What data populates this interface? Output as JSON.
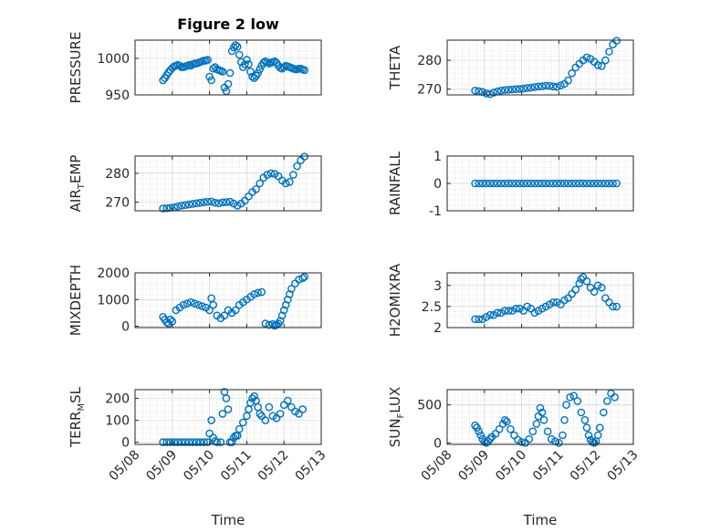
{
  "figure": {
    "title": "Figure 2 low",
    "xlabel": "Time",
    "x_ticks": [
      "05/08",
      "05/09",
      "05/10",
      "05/11",
      "05/12",
      "05/13"
    ],
    "marker_color": "#0072BD"
  },
  "chart_data": [
    {
      "type": "scatter",
      "ylabel": "PRESSURE",
      "ylim": [
        950,
        1025
      ],
      "yticks": [
        950,
        1000
      ],
      "xlim": [
        0,
        5
      ],
      "grid": true,
      "title": "Figure 2 low",
      "x": [
        0.75,
        0.8,
        0.85,
        0.9,
        0.95,
        1.0,
        1.05,
        1.1,
        1.15,
        1.2,
        1.25,
        1.3,
        1.35,
        1.4,
        1.45,
        1.5,
        1.55,
        1.6,
        1.65,
        1.7,
        1.75,
        1.8,
        1.85,
        1.9,
        1.95,
        2.0,
        2.05,
        2.1,
        2.15,
        2.2,
        2.25,
        2.3,
        2.35,
        2.4,
        2.45,
        2.5,
        2.55,
        2.6,
        2.65,
        2.7,
        2.75,
        2.8,
        2.85,
        2.9,
        2.95,
        3.0,
        3.05,
        3.1,
        3.15,
        3.2,
        3.25,
        3.3,
        3.35,
        3.4,
        3.45,
        3.5,
        3.55,
        3.6,
        3.65,
        3.7,
        3.75,
        3.8,
        3.85,
        3.9,
        3.95,
        4.0,
        4.05,
        4.1,
        4.15,
        4.2,
        4.25,
        4.3,
        4.35,
        4.4,
        4.45,
        4.5,
        4.55
      ],
      "y": [
        970,
        973,
        977,
        981,
        984,
        987,
        989,
        990,
        991,
        990,
        988,
        988,
        989,
        990,
        991,
        990,
        992,
        993,
        993,
        994,
        995,
        996,
        997,
        997,
        998,
        975,
        970,
        986,
        988,
        985,
        984,
        983,
        982,
        960,
        955,
        965,
        980,
        1010,
        1015,
        1018,
        1016,
        1005,
        995,
        988,
        992,
        998,
        992,
        982,
        975,
        973,
        976,
        980,
        985,
        990,
        994,
        996,
        995,
        993,
        994,
        995,
        996,
        994,
        990,
        987,
        986,
        988,
        990,
        989,
        988,
        987,
        986,
        985,
        985,
        986,
        986,
        985,
        984
      ]
    },
    {
      "type": "scatter",
      "ylabel": "THETA",
      "ylim": [
        268,
        287
      ],
      "yticks": [
        270,
        280
      ],
      "xlim": [
        0,
        5
      ],
      "grid": true,
      "x": [
        0.75,
        0.85,
        0.95,
        1.05,
        1.15,
        1.25,
        1.35,
        1.45,
        1.55,
        1.65,
        1.75,
        1.85,
        1.95,
        2.05,
        2.15,
        2.25,
        2.35,
        2.45,
        2.55,
        2.65,
        2.75,
        2.85,
        2.95,
        3.05,
        3.15,
        3.25,
        3.35,
        3.45,
        3.55,
        3.65,
        3.75,
        3.85,
        3.95,
        4.05,
        4.15,
        4.25,
        4.35,
        4.45,
        4.55
      ],
      "y": [
        269.5,
        269.3,
        269.0,
        268.5,
        268.3,
        268.8,
        269.2,
        269.5,
        269.7,
        269.8,
        269.9,
        270.0,
        270.1,
        270.2,
        270.4,
        270.5,
        270.7,
        270.9,
        271.0,
        271.2,
        271.1,
        270.9,
        270.8,
        271.3,
        271.8,
        273.0,
        275.5,
        277.5,
        278.8,
        280.0,
        281.0,
        280.5,
        279.5,
        278.3,
        278.0,
        280.0,
        283.0,
        285.5,
        286.8
      ]
    },
    {
      "type": "scatter",
      "ylabel": "AIR_TEMP",
      "ylim": [
        267,
        286
      ],
      "yticks": [
        270,
        280
      ],
      "xlim": [
        0,
        5
      ],
      "grid": true,
      "x": [
        0.75,
        0.85,
        0.95,
        1.05,
        1.15,
        1.25,
        1.35,
        1.45,
        1.55,
        1.65,
        1.75,
        1.85,
        1.95,
        2.05,
        2.15,
        2.25,
        2.35,
        2.45,
        2.55,
        2.65,
        2.75,
        2.85,
        2.95,
        3.05,
        3.15,
        3.25,
        3.35,
        3.45,
        3.55,
        3.65,
        3.75,
        3.85,
        3.95,
        4.05,
        4.15,
        4.25,
        4.35,
        4.45,
        4.55
      ],
      "y": [
        267.8,
        267.9,
        268.0,
        268.2,
        268.5,
        268.8,
        269.0,
        269.2,
        269.4,
        269.6,
        269.8,
        270.0,
        270.1,
        270.2,
        269.8,
        269.6,
        269.9,
        270.0,
        270.1,
        269.5,
        268.8,
        269.5,
        270.5,
        272.0,
        273.5,
        274.5,
        276.5,
        278.5,
        279.5,
        280.0,
        279.8,
        279.0,
        277.5,
        276.5,
        277.0,
        279.5,
        282.5,
        284.5,
        285.8
      ]
    },
    {
      "type": "scatter",
      "ylabel": "RAINFALL",
      "ylim": [
        -1,
        1
      ],
      "yticks": [
        -1,
        0,
        1
      ],
      "xlim": [
        0,
        5
      ],
      "grid": true,
      "x": [
        0.75,
        0.85,
        0.95,
        1.05,
        1.15,
        1.25,
        1.35,
        1.45,
        1.55,
        1.65,
        1.75,
        1.85,
        1.95,
        2.05,
        2.15,
        2.25,
        2.35,
        2.45,
        2.55,
        2.65,
        2.75,
        2.85,
        2.95,
        3.05,
        3.15,
        3.25,
        3.35,
        3.45,
        3.55,
        3.65,
        3.75,
        3.85,
        3.95,
        4.05,
        4.15,
        4.25,
        4.35,
        4.45,
        4.55
      ],
      "y": [
        0,
        0,
        0,
        0,
        0,
        0,
        0,
        0,
        0,
        0,
        0,
        0,
        0,
        0,
        0,
        0,
        0,
        0,
        0,
        0,
        0,
        0,
        0,
        0,
        0,
        0,
        0,
        0,
        0,
        0,
        0,
        0,
        0,
        0,
        0,
        0,
        0,
        0,
        0
      ]
    },
    {
      "type": "scatter",
      "ylabel": "MIXDEPTH",
      "ylim": [
        -50,
        2000
      ],
      "yticks": [
        0,
        1000,
        2000
      ],
      "xlim": [
        0,
        5
      ],
      "grid": true,
      "x": [
        0.75,
        0.8,
        0.85,
        0.9,
        0.95,
        1.0,
        1.1,
        1.2,
        1.3,
        1.4,
        1.5,
        1.6,
        1.7,
        1.8,
        1.9,
        2.0,
        2.05,
        2.1,
        2.2,
        2.3,
        2.4,
        2.5,
        2.6,
        2.7,
        2.8,
        2.9,
        3.0,
        3.1,
        3.2,
        3.3,
        3.4,
        3.5,
        3.6,
        3.7,
        3.75,
        3.8,
        3.85,
        3.9,
        3.95,
        4.0,
        4.05,
        4.1,
        4.15,
        4.2,
        4.3,
        4.4,
        4.5,
        4.55
      ],
      "y": [
        350,
        250,
        150,
        100,
        250,
        180,
        600,
        700,
        800,
        850,
        900,
        850,
        800,
        750,
        700,
        600,
        1050,
        800,
        400,
        300,
        400,
        600,
        500,
        600,
        800,
        900,
        1000,
        1100,
        1200,
        1250,
        1280,
        100,
        50,
        80,
        20,
        60,
        100,
        200,
        400,
        600,
        800,
        1000,
        1200,
        1400,
        1600,
        1750,
        1800,
        1850
      ]
    },
    {
      "type": "scatter",
      "ylabel": "H2OMIXRA",
      "ylim": [
        2.0,
        3.3
      ],
      "yticks": [
        2,
        2.5,
        3
      ],
      "xlim": [
        0,
        5
      ],
      "grid": true,
      "x": [
        0.75,
        0.85,
        0.95,
        1.05,
        1.15,
        1.25,
        1.35,
        1.45,
        1.55,
        1.65,
        1.75,
        1.85,
        1.95,
        2.05,
        2.15,
        2.25,
        2.35,
        2.45,
        2.55,
        2.65,
        2.75,
        2.85,
        2.95,
        3.05,
        3.15,
        3.25,
        3.35,
        3.45,
        3.55,
        3.6,
        3.65,
        3.75,
        3.85,
        3.95,
        4.05,
        4.15,
        4.25,
        4.35,
        4.45,
        4.55
      ],
      "y": [
        2.2,
        2.2,
        2.2,
        2.25,
        2.3,
        2.3,
        2.35,
        2.35,
        2.4,
        2.4,
        2.4,
        2.45,
        2.45,
        2.4,
        2.5,
        2.45,
        2.35,
        2.4,
        2.45,
        2.5,
        2.55,
        2.6,
        2.6,
        2.55,
        2.65,
        2.7,
        2.8,
        2.9,
        3.05,
        3.15,
        3.2,
        3.1,
        2.95,
        2.85,
        3.0,
        2.95,
        2.7,
        2.6,
        2.5,
        2.5
      ]
    },
    {
      "type": "scatter",
      "ylabel": "TERR_MSL",
      "ylim": [
        -10,
        240
      ],
      "yticks": [
        0,
        100,
        200
      ],
      "xlim": [
        0,
        5
      ],
      "grid": true,
      "x": [
        0.75,
        0.85,
        0.95,
        1.05,
        1.15,
        1.25,
        1.35,
        1.45,
        1.55,
        1.65,
        1.75,
        1.85,
        1.95,
        2.0,
        2.05,
        2.1,
        2.15,
        2.2,
        2.3,
        2.35,
        2.4,
        2.45,
        2.5,
        2.55,
        2.6,
        2.65,
        2.7,
        2.75,
        2.8,
        2.9,
        3.0,
        3.05,
        3.1,
        3.15,
        3.2,
        3.25,
        3.3,
        3.35,
        3.4,
        3.5,
        3.6,
        3.7,
        3.8,
        3.9,
        4.0,
        4.1,
        4.2,
        4.3,
        4.4,
        4.5
      ],
      "y": [
        0,
        0,
        0,
        0,
        0,
        0,
        0,
        0,
        0,
        0,
        0,
        0,
        0,
        40,
        100,
        20,
        5,
        0,
        0,
        130,
        230,
        200,
        150,
        0,
        0,
        20,
        30,
        30,
        60,
        90,
        120,
        150,
        180,
        200,
        210,
        190,
        160,
        130,
        120,
        100,
        160,
        120,
        110,
        130,
        170,
        190,
        160,
        140,
        130,
        150
      ]
    },
    {
      "type": "scatter",
      "ylabel": "SUN_FLUX",
      "ylim": [
        -20,
        700
      ],
      "yticks": [
        0,
        500
      ],
      "xlim": [
        0,
        5
      ],
      "grid": true,
      "x": [
        0.75,
        0.8,
        0.85,
        0.9,
        0.95,
        1.0,
        1.05,
        1.1,
        1.15,
        1.2,
        1.3,
        1.4,
        1.5,
        1.55,
        1.6,
        1.7,
        1.8,
        1.9,
        2.0,
        2.1,
        2.2,
        2.3,
        2.4,
        2.45,
        2.5,
        2.55,
        2.6,
        2.7,
        2.8,
        2.9,
        3.0,
        3.1,
        3.15,
        3.2,
        3.3,
        3.4,
        3.5,
        3.6,
        3.7,
        3.75,
        3.8,
        3.85,
        3.9,
        3.95,
        4.0,
        4.05,
        4.1,
        4.2,
        4.3,
        4.4,
        4.5
      ],
      "y": [
        230,
        200,
        150,
        100,
        50,
        10,
        0,
        20,
        50,
        80,
        120,
        180,
        250,
        300,
        280,
        180,
        100,
        40,
        10,
        0,
        50,
        150,
        250,
        350,
        460,
        400,
        300,
        150,
        50,
        20,
        0,
        100,
        300,
        500,
        600,
        620,
        550,
        400,
        300,
        200,
        100,
        40,
        10,
        0,
        20,
        100,
        200,
        400,
        550,
        650,
        600
      ]
    }
  ]
}
